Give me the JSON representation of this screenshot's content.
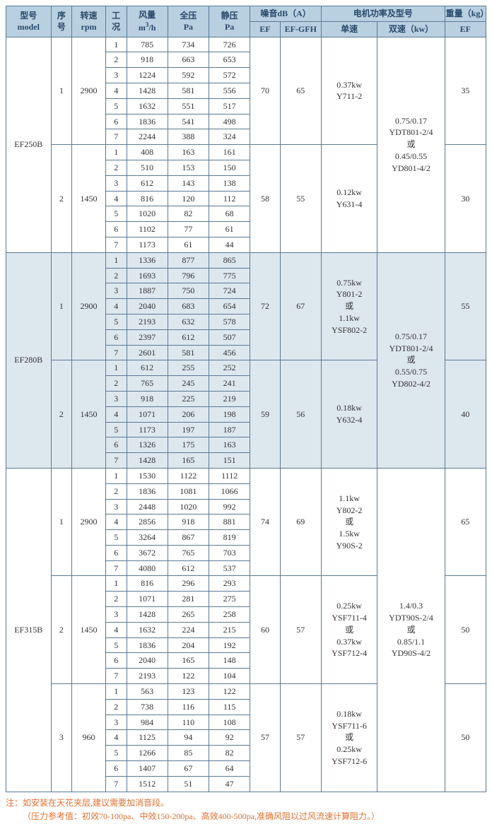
{
  "headers": {
    "model": "型号\nmodel",
    "seq": "序\n号",
    "rpm": "转速\nrpm",
    "cond": "工\n况",
    "flow": "风量\nm³/h",
    "total_p": "全压\nPa",
    "static_p": "静压\nPa",
    "noise": "噪音dB（A）",
    "noise_ef": "EF",
    "noise_efgfh": "EF-GFH",
    "motor": "电机功率及型号",
    "motor_single": "单速",
    "motor_dual": "双速（kw）",
    "weight": "重量（kg）",
    "weight_ef": "EF"
  },
  "models": [
    {
      "name": "EF250B",
      "shade": false,
      "dual": "0.75/0.17\nYDT801-2/4\n或\n0.45/0.55\nYD801-4/2",
      "groups": [
        {
          "seq": "1",
          "rpm": "2900",
          "rows": [
            [
              "785",
              "734",
              "726"
            ],
            [
              "918",
              "663",
              "653"
            ],
            [
              "1224",
              "592",
              "572"
            ],
            [
              "1428",
              "581",
              "556"
            ],
            [
              "1632",
              "551",
              "517"
            ],
            [
              "1836",
              "541",
              "498"
            ],
            [
              "2244",
              "388",
              "324"
            ]
          ],
          "ef": "70",
          "efgfh": "65",
          "single": "0.37kw\nY711-2",
          "wt": "35"
        },
        {
          "seq": "2",
          "rpm": "1450",
          "rows": [
            [
              "408",
              "163",
              "161"
            ],
            [
              "510",
              "153",
              "150"
            ],
            [
              "612",
              "143",
              "138"
            ],
            [
              "816",
              "120",
              "112"
            ],
            [
              "1020",
              "82",
              "68"
            ],
            [
              "1102",
              "77",
              "61"
            ],
            [
              "1173",
              "61",
              "44"
            ]
          ],
          "ef": "58",
          "efgfh": "55",
          "single": "0.12kw\nY631-4",
          "wt": "30"
        }
      ]
    },
    {
      "name": "EF280B",
      "shade": true,
      "dual": "0.75/0.17\nYDT801-2/4\n或\n0.55/0.75\nYD802-4/2",
      "groups": [
        {
          "seq": "1",
          "rpm": "2900",
          "rows": [
            [
              "1336",
              "877",
              "865"
            ],
            [
              "1693",
              "796",
              "775"
            ],
            [
              "1887",
              "750",
              "724"
            ],
            [
              "2040",
              "683",
              "654"
            ],
            [
              "2193",
              "632",
              "578"
            ],
            [
              "2397",
              "612",
              "507"
            ],
            [
              "2601",
              "581",
              "456"
            ]
          ],
          "ef": "72",
          "efgfh": "67",
          "single": "0.75kw\nY801-2\n或\n1.1kw\nYSF802-2",
          "wt": "55"
        },
        {
          "seq": "2",
          "rpm": "1450",
          "rows": [
            [
              "612",
              "255",
              "252"
            ],
            [
              "765",
              "245",
              "241"
            ],
            [
              "918",
              "225",
              "219"
            ],
            [
              "1071",
              "206",
              "198"
            ],
            [
              "1173",
              "197",
              "187"
            ],
            [
              "1326",
              "175",
              "163"
            ],
            [
              "1428",
              "165",
              "151"
            ]
          ],
          "ef": "59",
          "efgfh": "56",
          "single": "0.18kw\nY632-4",
          "wt": "40"
        }
      ]
    },
    {
      "name": "EF315B",
      "shade": false,
      "dual": "1.4/0.3\nYDT90S-2/4\n或\n0.85/1.1\nYD90S-4/2",
      "groups": [
        {
          "seq": "1",
          "rpm": "2900",
          "rows": [
            [
              "1530",
              "1122",
              "1112"
            ],
            [
              "1836",
              "1081",
              "1066"
            ],
            [
              "2448",
              "1020",
              "992"
            ],
            [
              "2856",
              "918",
              "881"
            ],
            [
              "3264",
              "867",
              "819"
            ],
            [
              "3672",
              "765",
              "703"
            ],
            [
              "4080",
              "612",
              "537"
            ]
          ],
          "ef": "74",
          "efgfh": "69",
          "single": "1.1kw\nY802-2\n或\n1.5kw\nY90S-2",
          "wt": "65"
        },
        {
          "seq": "2",
          "rpm": "1450",
          "rows": [
            [
              "816",
              "296",
              "293"
            ],
            [
              "1071",
              "281",
              "275"
            ],
            [
              "1428",
              "265",
              "258"
            ],
            [
              "1632",
              "224",
              "215"
            ],
            [
              "1836",
              "204",
              "192"
            ],
            [
              "2040",
              "165",
              "148"
            ],
            [
              "2193",
              "122",
              "104"
            ]
          ],
          "ef": "60",
          "efgfh": "57",
          "single": "0.25kw\nYSF711-4\n或\n0.37kw\nYSF712-4",
          "wt": "50"
        },
        {
          "seq": "3",
          "rpm": "960",
          "rows": [
            [
              "563",
              "123",
              "122"
            ],
            [
              "738",
              "116",
              "115"
            ],
            [
              "984",
              "110",
              "108"
            ],
            [
              "1125",
              "94",
              "92"
            ],
            [
              "1266",
              "85",
              "82"
            ],
            [
              "1407",
              "67",
              "64"
            ],
            [
              "1512",
              "51",
              "47"
            ]
          ],
          "ef": "57",
          "efgfh": "57",
          "single": "0.18kw\nYSF711-6\n或\n0.25kw\nYSF712-6",
          "wt": "50"
        }
      ]
    }
  ],
  "note1": "注：如安装在天花夹层,建议需要加消音段。",
  "note2": "（压力参考值：初效70-100pa、中效150-200pa、高效400-500pa,准确风阻以过风流速计算阻力。）"
}
